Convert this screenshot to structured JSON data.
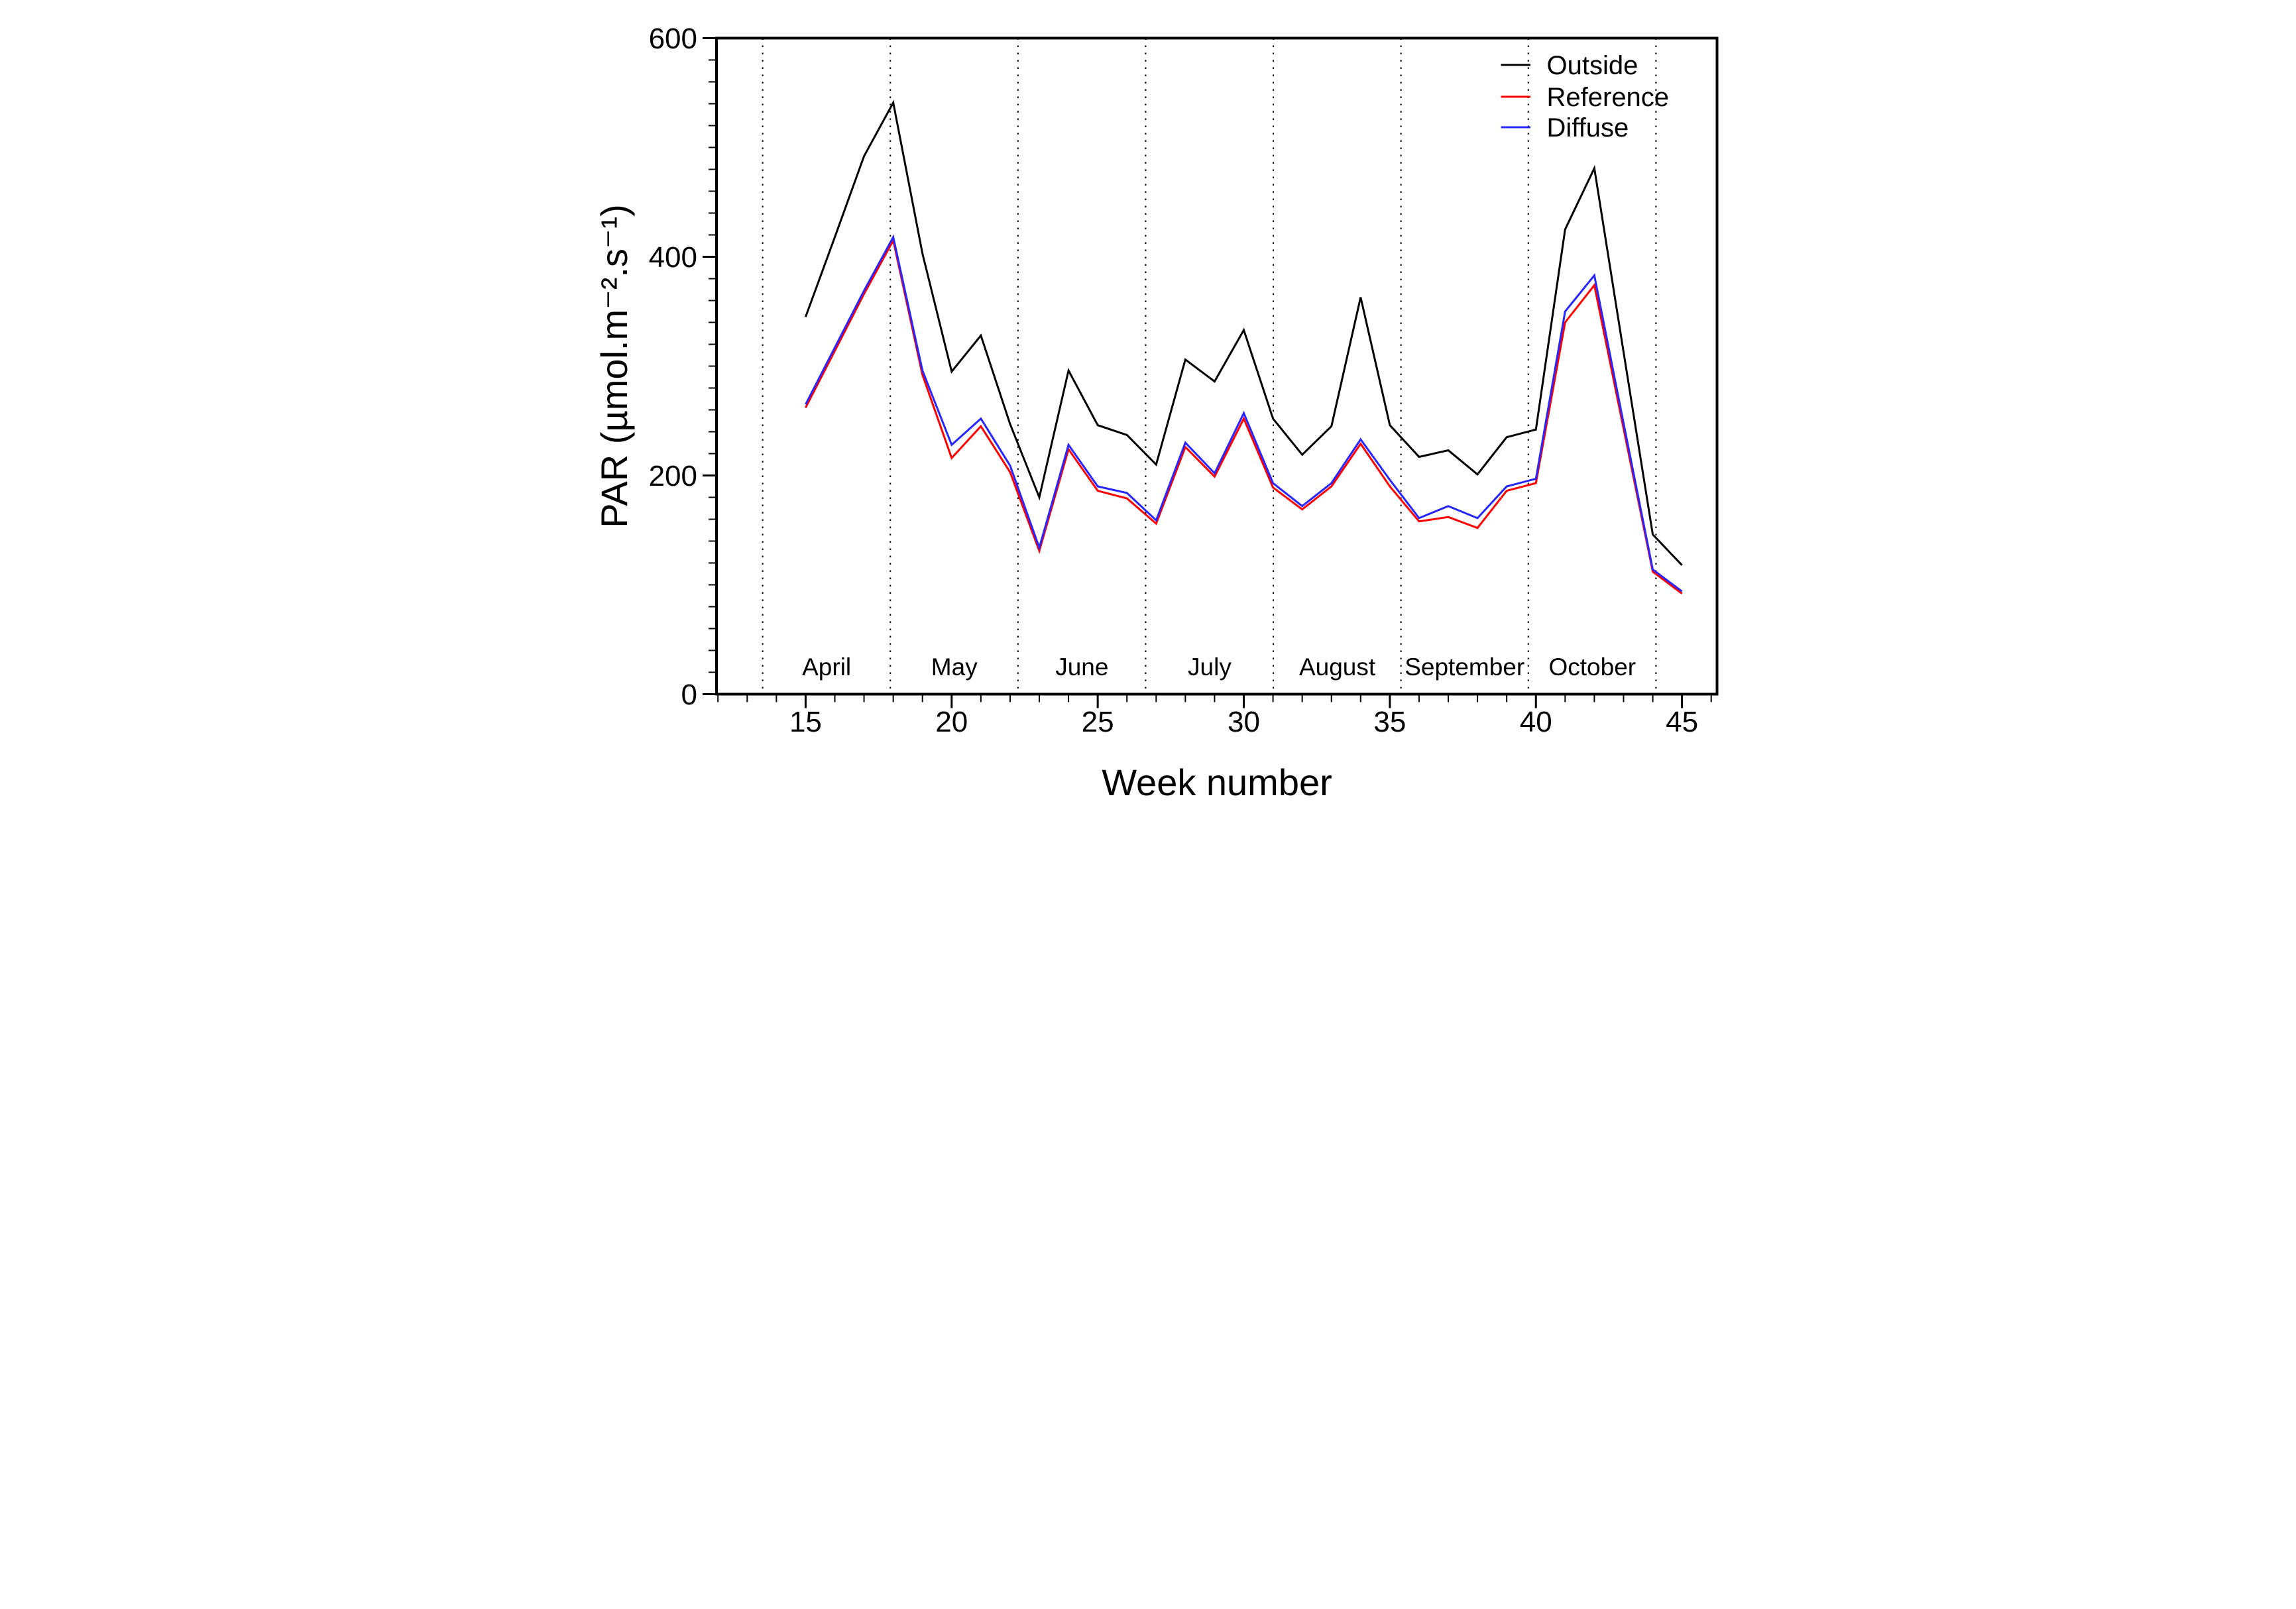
{
  "chart_data": {
    "type": "line",
    "title": "",
    "xlabel": "Week number",
    "ylabel": "PAR (µmol.m⁻².s⁻¹)",
    "xlim": [
      11.95,
      46.2
    ],
    "ylim": [
      0,
      600
    ],
    "x_major_ticks": [
      15,
      20,
      25,
      30,
      35,
      40,
      45
    ],
    "x_minor_step": 1,
    "y_major_ticks": [
      0,
      200,
      400,
      600
    ],
    "y_minor_step": 20,
    "grid": false,
    "legend_position": "top-right",
    "x": [
      15,
      16,
      17,
      18,
      19,
      20,
      21,
      22,
      23,
      24,
      25,
      26,
      27,
      28,
      29,
      30,
      31,
      32,
      33,
      34,
      35,
      36,
      37,
      38,
      39,
      40,
      41,
      42,
      43,
      44,
      45
    ],
    "series": [
      {
        "name": "Outside",
        "color": "#000000",
        "values": [
          345,
          418,
          492,
          541,
          403,
          295,
          328,
          247,
          180,
          296,
          246,
          237,
          210,
          306,
          286,
          333,
          252,
          219,
          245,
          363,
          246,
          217,
          223,
          201,
          235,
          242,
          425,
          481,
          313,
          146,
          118
        ]
      },
      {
        "name": "Reference",
        "color": "#ff0000",
        "values": [
          262,
          314,
          366,
          415,
          292,
          216,
          245,
          203,
          131,
          224,
          186,
          179,
          156,
          226,
          199,
          252,
          189,
          169,
          190,
          229,
          190,
          158,
          162,
          152,
          186,
          193,
          340,
          374,
          243,
          112,
          92
        ]
      },
      {
        "name": "Diffuse",
        "color": "#2626ff",
        "values": [
          265,
          317,
          369,
          418,
          296,
          228,
          252,
          209,
          134,
          228,
          190,
          184,
          159,
          230,
          202,
          257,
          193,
          172,
          193,
          233,
          196,
          161,
          172,
          161,
          190,
          197,
          350,
          383,
          248,
          114,
          94
        ]
      }
    ],
    "month_boundaries": [
      13.53,
      17.9,
      22.27,
      26.64,
      31.01,
      35.38,
      39.74,
      44.11
    ],
    "month_labels": [
      {
        "name": "April",
        "week": 15.72
      },
      {
        "name": "May",
        "week": 20.09
      },
      {
        "name": "June",
        "week": 24.46
      },
      {
        "name": "July",
        "week": 28.83
      },
      {
        "name": "August",
        "week": 33.2
      },
      {
        "name": "September",
        "week": 37.56
      },
      {
        "name": "October",
        "week": 41.93
      }
    ]
  }
}
